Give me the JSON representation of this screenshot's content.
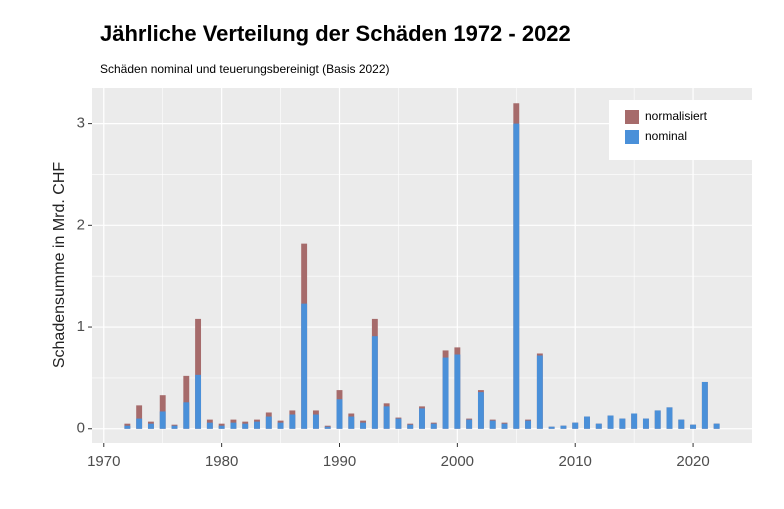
{
  "chart_data": {
    "type": "bar",
    "title": "Jährliche Verteilung der Schäden 1972 - 2022",
    "subtitle": "Schäden nominal und teuerungsbereinigt (Basis 2022)",
    "y_label": "Schadensumme in Mrd. CHF",
    "x": [
      1972,
      1973,
      1974,
      1975,
      1976,
      1977,
      1978,
      1979,
      1980,
      1981,
      1982,
      1983,
      1984,
      1985,
      1986,
      1987,
      1988,
      1989,
      1990,
      1991,
      1992,
      1993,
      1994,
      1995,
      1996,
      1997,
      1998,
      1999,
      2000,
      2001,
      2002,
      2003,
      2004,
      2005,
      2006,
      2007,
      2008,
      2009,
      2010,
      2011,
      2012,
      2013,
      2014,
      2015,
      2016,
      2017,
      2018,
      2019,
      2020,
      2021,
      2022
    ],
    "series": [
      {
        "name": "normalisiert",
        "color": "#a66b6b",
        "values": [
          0.05,
          0.23,
          0.07,
          0.33,
          0.04,
          0.52,
          1.08,
          0.09,
          0.05,
          0.09,
          0.07,
          0.09,
          0.16,
          0.08,
          0.18,
          1.82,
          0.18,
          0.03,
          0.38,
          0.15,
          0.08,
          1.08,
          0.25,
          0.11,
          0.05,
          0.22,
          0.06,
          0.77,
          0.8,
          0.1,
          0.38,
          0.09,
          0.06,
          3.2,
          0.09,
          0.74,
          0.02,
          0.03,
          0.06,
          0.12,
          0.05,
          0.13,
          0.1,
          0.15,
          0.1,
          0.18,
          0.21,
          0.09,
          0.04,
          0.46,
          0.05
        ]
      },
      {
        "name": "nominal",
        "color": "#4a90d9",
        "values": [
          0.03,
          0.1,
          0.05,
          0.17,
          0.03,
          0.26,
          0.53,
          0.06,
          0.03,
          0.06,
          0.05,
          0.07,
          0.12,
          0.06,
          0.14,
          1.23,
          0.14,
          0.02,
          0.29,
          0.12,
          0.06,
          0.91,
          0.22,
          0.1,
          0.04,
          0.2,
          0.05,
          0.7,
          0.73,
          0.09,
          0.36,
          0.08,
          0.05,
          3.0,
          0.08,
          0.72,
          0.02,
          0.03,
          0.06,
          0.12,
          0.05,
          0.13,
          0.1,
          0.15,
          0.1,
          0.18,
          0.21,
          0.09,
          0.04,
          0.46,
          0.05
        ]
      }
    ],
    "xlim": [
      1969,
      2025
    ],
    "xticks": [
      1970,
      1980,
      1990,
      2000,
      2010,
      2020
    ],
    "ylim": [
      -0.14,
      3.35
    ],
    "yticks": [
      0,
      1,
      2,
      3
    ],
    "grid": true,
    "legend": "top-right"
  }
}
